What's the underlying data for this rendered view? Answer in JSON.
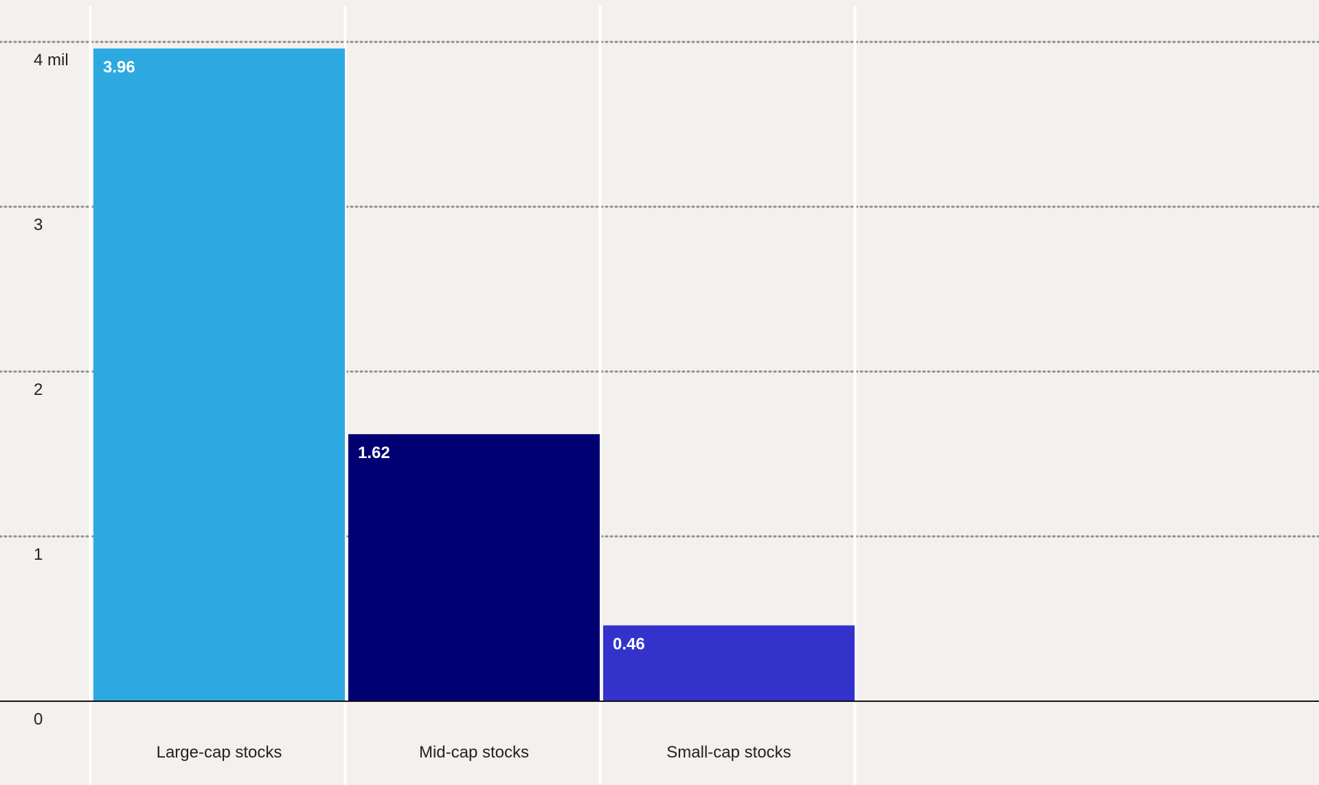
{
  "chart_data": {
    "type": "bar",
    "categories": [
      "Large-cap stocks",
      "Mid-cap stocks",
      "Small-cap stocks"
    ],
    "values": [
      3.96,
      1.62,
      0.46
    ],
    "value_labels": [
      "3.96",
      "1.62",
      "0.46"
    ],
    "bar_colors": [
      "#2CA9E1",
      "#000073",
      "#3333CC"
    ],
    "ylim": [
      0,
      4
    ],
    "yticks": [
      0,
      1,
      2,
      3,
      4
    ],
    "ytick_labels": [
      "0",
      "1",
      "2",
      "3",
      "4 mil"
    ],
    "title": "",
    "xlabel": "",
    "ylabel": "",
    "grid": true,
    "grid_style": "dotted",
    "legend": false
  },
  "colors": {
    "background": "#F3F0ED",
    "gridline": "#8A8F96",
    "column_separator": "#FFFFFF",
    "baseline": "#111111"
  }
}
